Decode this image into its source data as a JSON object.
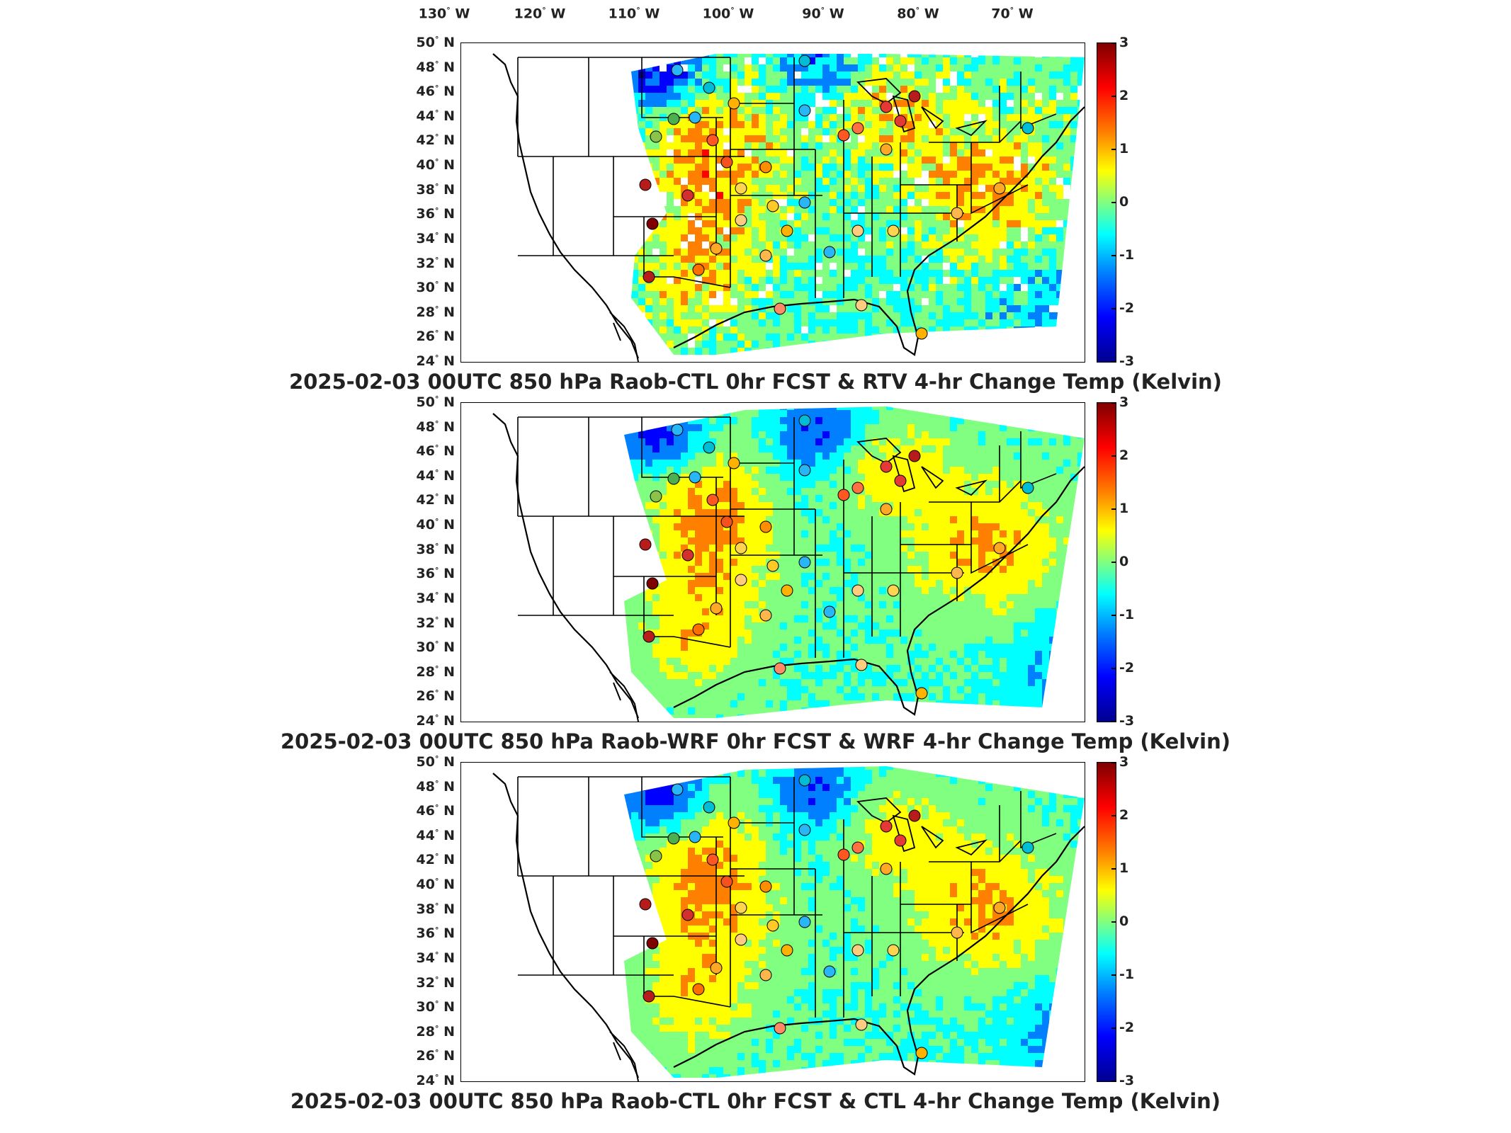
{
  "longitude_labels": [
    "130",
    "120",
    "110",
    "100",
    "90",
    "80",
    "70"
  ],
  "longitude_hemisphere": "W",
  "latitude_labels": [
    "50",
    "48",
    "46",
    "44",
    "42",
    "40",
    "38",
    "36",
    "34",
    "32",
    "30",
    "28",
    "26",
    "24"
  ],
  "latitude_hemisphere": "N",
  "degree_symbol": "°",
  "colorbar": {
    "ticks": [
      "3",
      "2",
      "1",
      "0",
      "-1",
      "-2",
      "-3"
    ],
    "range": [
      -3,
      3
    ],
    "colormap": [
      "#7f0000",
      "#ff0000",
      "#ff8000",
      "#ffff00",
      "#80ff80",
      "#00ffff",
      "#0080ff",
      "#0000ff",
      "#00008f"
    ]
  },
  "panels": [
    {
      "title": "2025-02-03 00UTC 850 hPa Raob-CTL 0hr FCST & RTV 4-hr Change Temp (Kelvin)"
    },
    {
      "title": "2025-02-03 00UTC 850 hPa Raob-WRF 0hr FCST & WRF 4-hr Change Temp (Kelvin)"
    },
    {
      "title": "2025-02-03 00UTC 850 hPa Raob-CTL 0hr FCST & CTL 4-hr Change Temp (Kelvin)"
    }
  ]
}
